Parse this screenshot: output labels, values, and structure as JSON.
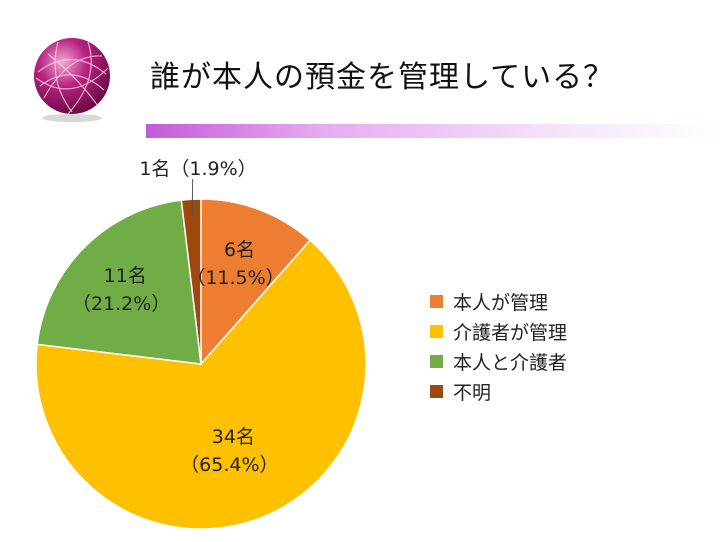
{
  "title": "誰が本人の預金を管理している？",
  "colors": {
    "accent_bar": "#c45ad8",
    "logo": "#a0156e"
  },
  "chart_data": {
    "type": "pie",
    "slices": [
      {
        "name": "本人が管理",
        "count": 6,
        "percent": 11.5,
        "count_label": "6名",
        "percent_label": "（11.5%）",
        "color": "#ed7d31"
      },
      {
        "name": "介護者が管理",
        "count": 34,
        "percent": 65.4,
        "count_label": "34名",
        "percent_label": "（65.4%）",
        "color": "#ffc000"
      },
      {
        "name": "本人と介護者",
        "count": 11,
        "percent": 21.2,
        "count_label": "11名",
        "percent_label": "（21.2%）",
        "color": "#70ad47"
      },
      {
        "name": "不明",
        "count": 1,
        "percent": 1.9,
        "count_label": "1名",
        "percent_label": "（1.9%）",
        "color": "#9e480e"
      }
    ],
    "outside_label": "1名（1.9%）",
    "legend_position": "right"
  }
}
